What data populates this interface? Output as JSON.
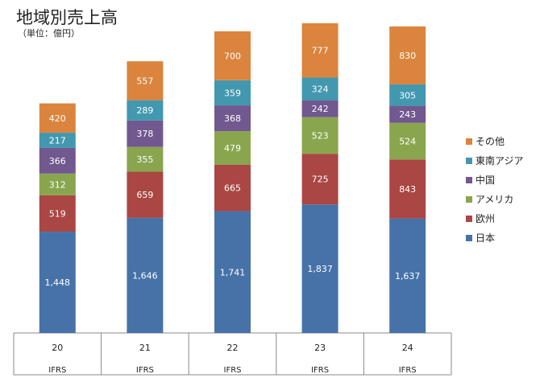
{
  "title": "地域別売上高",
  "subtitle": "（単位：億円）",
  "chart_data": {
    "type": "bar",
    "stacked": true,
    "title": "地域別売上高",
    "unit": "（単位：億円）",
    "categories": [
      "20",
      "21",
      "22",
      "23",
      "24"
    ],
    "category_sublabels": [
      "IFRS",
      "IFRS",
      "IFRS",
      "IFRS",
      "IFRS"
    ],
    "series": [
      {
        "name": "日本",
        "color": "#4672A8",
        "values": [
          1448,
          1646,
          1741,
          1837,
          1637
        ],
        "labels": [
          "1,448",
          "1,646",
          "1,741",
          "1,837",
          "1,637"
        ]
      },
      {
        "name": "欧州",
        "color": "#AA4643",
        "values": [
          519,
          659,
          665,
          725,
          843
        ],
        "labels": [
          "519",
          "659",
          "665",
          "725",
          "843"
        ]
      },
      {
        "name": "アメリカ",
        "color": "#89A54E",
        "values": [
          312,
          355,
          479,
          523,
          524
        ],
        "labels": [
          "312",
          "355",
          "479",
          "523",
          "524"
        ]
      },
      {
        "name": "中国",
        "color": "#71588F",
        "values": [
          366,
          378,
          368,
          242,
          243
        ],
        "labels": [
          "366",
          "378",
          "368",
          "242",
          "243"
        ]
      },
      {
        "name": "東南アジア",
        "color": "#4198AF",
        "values": [
          217,
          289,
          359,
          324,
          305
        ],
        "labels": [
          "217",
          "289",
          "359",
          "324",
          "305"
        ]
      },
      {
        "name": "その他",
        "color": "#DB843D",
        "values": [
          420,
          557,
          700,
          777,
          830
        ],
        "labels": [
          "420",
          "557",
          "700",
          "777",
          "830"
        ]
      }
    ],
    "legend_order": [
      "その他",
      "東南アジア",
      "中国",
      "アメリカ",
      "欧州",
      "日本"
    ],
    "legend_position": "right",
    "ylim": [
      0,
      4300
    ],
    "grid": false
  }
}
